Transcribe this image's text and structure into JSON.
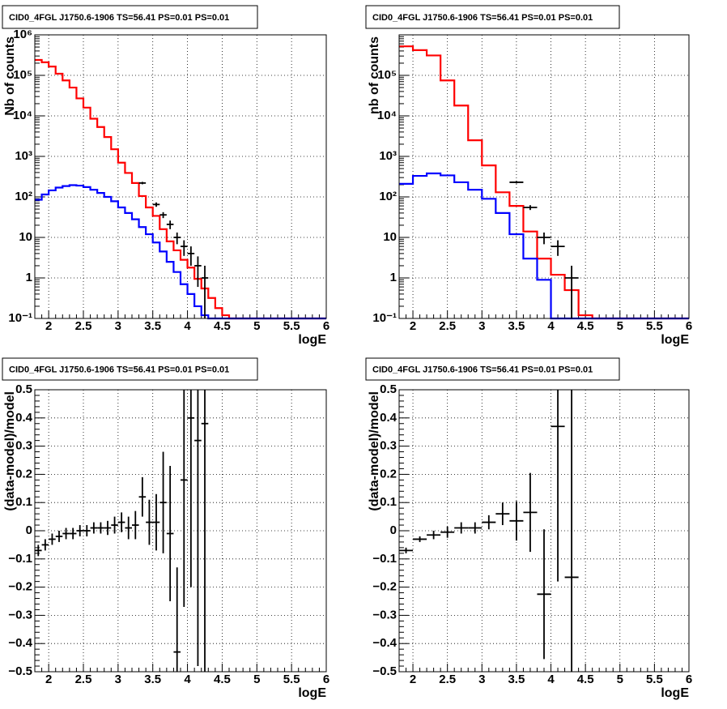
{
  "figure_title": "CID0_4FGL J1750.6-1906 TS=56.41 PS=0.01 PS=0.01",
  "colors": {
    "data": "#000000",
    "model_total": "#ff0000",
    "model_source": "#0000ff",
    "grid": "#000000",
    "frame": "#000000"
  },
  "chart_data": [
    {
      "type": "line",
      "panel": "top-left",
      "title": "CID0_4FGL J1750.6-1906 TS=56.41 PS=0.01 PS=0.01",
      "xlabel": "logE",
      "ylabel": "Nb of counts",
      "xlim": [
        1.8,
        6
      ],
      "ylim": [
        0.1,
        1000000
      ],
      "yscale": "log",
      "grid": true,
      "x_ticks": [
        "2",
        "2.5",
        "3",
        "3.5",
        "4",
        "4.5",
        "5",
        "5.5",
        "6"
      ],
      "x_tick_values": [
        2,
        2.5,
        3,
        3.5,
        4,
        4.5,
        5,
        5.5,
        6
      ],
      "y_ticks": [
        "10⁻¹",
        "1",
        "10",
        "10²",
        "10³",
        "10⁴",
        "10⁵",
        "10⁶"
      ],
      "y_tick_values": [
        0.1,
        1,
        10,
        100,
        1000,
        10000,
        100000,
        1000000
      ],
      "bin_edges": [
        1.8,
        1.9,
        2.0,
        2.1,
        2.2,
        2.3,
        2.4,
        2.5,
        2.6,
        2.7,
        2.8,
        2.9,
        3.0,
        3.1,
        3.2,
        3.3,
        3.4,
        3.5,
        3.6,
        3.7,
        3.8,
        3.9,
        4.0,
        4.1,
        4.2,
        4.3,
        4.4,
        4.5,
        4.6,
        4.7,
        4.8,
        4.9,
        5.0,
        5.1,
        5.2,
        5.3,
        5.4,
        5.5,
        5.6,
        5.7,
        5.8,
        5.9,
        6.0
      ],
      "series": [
        {
          "role": "model_total",
          "color": "#ff0000",
          "values": [
            240000,
            210000,
            165000,
            110000,
            75000,
            50000,
            27000,
            16000,
            8500,
            5300,
            3000,
            1500,
            700,
            390,
            220,
            105,
            55,
            34,
            16,
            8,
            4.8,
            2.8,
            1.8,
            0.95,
            0.55,
            0.32,
            0.18,
            0.12,
            0.1,
            0.1,
            0.1,
            0.1,
            0.1,
            0.1,
            0.1,
            0.1,
            0.1,
            0.1,
            0.1,
            0.1,
            0.1,
            0.1
          ]
        },
        {
          "role": "model_source",
          "color": "#0000ff",
          "values": [
            85,
            115,
            145,
            170,
            185,
            195,
            190,
            175,
            150,
            125,
            100,
            78,
            55,
            40,
            28,
            18,
            12,
            7.5,
            4.5,
            2.5,
            1.4,
            0.7,
            0.4,
            0.2,
            0.12,
            0.1,
            0.1,
            0.1,
            0.1,
            0.1,
            0.1,
            0.1,
            0.1,
            0.1,
            0.1,
            0.1,
            0.1,
            0.1,
            0.1,
            0.1,
            0.1,
            0.1
          ]
        },
        {
          "role": "data",
          "color": "#000000",
          "points": [
            [
              3.35,
              220,
              15
            ],
            [
              3.55,
              65,
              8
            ],
            [
              3.65,
              36,
              6
            ],
            [
              3.75,
              21,
              5
            ],
            [
              3.85,
              10,
              3.2
            ],
            [
              3.95,
              6,
              2.5
            ],
            [
              4.05,
              4,
              2
            ],
            [
              4.15,
              2,
              1.4
            ],
            [
              4.25,
              1,
              1
            ]
          ]
        }
      ]
    },
    {
      "type": "line",
      "panel": "top-right",
      "title": "CID0_4FGL J1750.6-1906 TS=56.41 PS=0.01 PS=0.01",
      "xlabel": "logE",
      "ylabel": "nb of counts",
      "xlim": [
        1.8,
        6
      ],
      "ylim": [
        0.1,
        1000000
      ],
      "yscale": "log",
      "grid": true,
      "x_ticks": [
        "2",
        "2.5",
        "3",
        "3.5",
        "4",
        "4.5",
        "5",
        "5.5",
        "6"
      ],
      "x_tick_values": [
        2,
        2.5,
        3,
        3.5,
        4,
        4.5,
        5,
        5.5,
        6
      ],
      "y_ticks": [
        "10⁻¹",
        "1",
        "10",
        "10²",
        "10³",
        "10⁴",
        "10⁵"
      ],
      "y_tick_values": [
        0.1,
        1,
        10,
        100,
        1000,
        10000,
        100000
      ],
      "bin_edges": [
        1.8,
        2.0,
        2.2,
        2.4,
        2.6,
        2.8,
        3.0,
        3.2,
        3.4,
        3.6,
        3.8,
        4.0,
        4.2,
        4.4,
        4.6,
        4.8,
        5.0,
        5.2,
        5.4,
        5.6,
        5.8,
        6.0
      ],
      "series": [
        {
          "role": "model_total",
          "color": "#ff0000",
          "values": [
            520000,
            420000,
            310000,
            75000,
            18000,
            2500,
            600,
            130,
            60,
            14,
            3,
            1.2,
            0.5,
            0.12,
            0.1,
            0.1,
            0.1,
            0.1,
            0.1,
            0.1,
            0.1
          ]
        },
        {
          "role": "model_source",
          "color": "#0000ff",
          "values": [
            210,
            330,
            380,
            340,
            230,
            150,
            90,
            40,
            12,
            3,
            0.9,
            0.1,
            0.1,
            0.1,
            0.1,
            0.1,
            0.1,
            0.1,
            0.1,
            0.1,
            0.1
          ]
        },
        {
          "role": "data",
          "color": "#000000",
          "points": [
            [
              3.5,
              230,
              15
            ],
            [
              3.7,
              55,
              7.5
            ],
            [
              3.9,
              10,
              3.2
            ],
            [
              4.1,
              6,
              2.5
            ],
            [
              4.3,
              1,
              1
            ]
          ]
        }
      ]
    },
    {
      "type": "scatter",
      "panel": "bottom-left",
      "title": "CID0_4FGL J1750.6-1906 TS=56.41 PS=0.01 PS=0.01",
      "xlabel": "logE",
      "ylabel": "(data-model)/model",
      "xlim": [
        1.8,
        6
      ],
      "ylim": [
        -0.5,
        0.5
      ],
      "grid": true,
      "x_ticks": [
        "2",
        "2.5",
        "3",
        "3.5",
        "4",
        "4.5",
        "5",
        "5.5",
        "6"
      ],
      "x_tick_values": [
        2,
        2.5,
        3,
        3.5,
        4,
        4.5,
        5,
        5.5,
        6
      ],
      "y_ticks": [
        "−0.5",
        "−0.4",
        "−0.3",
        "−0.2",
        "−0.1",
        "0",
        "0.1",
        "0.2",
        "0.3",
        "0.4",
        "0.5"
      ],
      "y_tick_values": [
        -0.5,
        -0.4,
        -0.3,
        -0.2,
        -0.1,
        0,
        0.1,
        0.2,
        0.3,
        0.4,
        0.5
      ],
      "x_halfwidth": 0.05,
      "points": [
        [
          1.85,
          -0.07,
          0.02
        ],
        [
          1.95,
          -0.05,
          0.02
        ],
        [
          2.05,
          -0.03,
          0.02
        ],
        [
          2.15,
          -0.02,
          0.02
        ],
        [
          2.25,
          -0.01,
          0.02
        ],
        [
          2.35,
          -0.01,
          0.02
        ],
        [
          2.45,
          0.0,
          0.02
        ],
        [
          2.55,
          0.0,
          0.02
        ],
        [
          2.65,
          0.01,
          0.02
        ],
        [
          2.75,
          0.01,
          0.02
        ],
        [
          2.85,
          0.01,
          0.025
        ],
        [
          2.95,
          0.02,
          0.03
        ],
        [
          3.05,
          0.03,
          0.035
        ],
        [
          3.15,
          0.01,
          0.04
        ],
        [
          3.25,
          0.02,
          0.05
        ],
        [
          3.35,
          0.12,
          0.07
        ],
        [
          3.45,
          0.03,
          0.08
        ],
        [
          3.55,
          0.03,
          0.1
        ],
        [
          3.65,
          0.1,
          0.18
        ],
        [
          3.75,
          -0.01,
          0.24
        ],
        [
          3.85,
          -0.43,
          0.3
        ],
        [
          3.95,
          0.18,
          0.45
        ],
        [
          4.05,
          0.4,
          0.6
        ],
        [
          4.15,
          0.32,
          0.8
        ],
        [
          4.25,
          0.38,
          1.0
        ]
      ]
    },
    {
      "type": "scatter",
      "panel": "bottom-right",
      "title": "CID0_4FGL J1750.6-1906 TS=56.41 PS=0.01 PS=0.01",
      "xlabel": "logE",
      "ylabel": "(data-model)/model",
      "xlim": [
        1.8,
        6
      ],
      "ylim": [
        -0.5,
        0.5
      ],
      "grid": true,
      "x_ticks": [
        "2",
        "2.5",
        "3",
        "3.5",
        "4",
        "4.5",
        "5",
        "5.5",
        "6"
      ],
      "x_tick_values": [
        2,
        2.5,
        3,
        3.5,
        4,
        4.5,
        5,
        5.5,
        6
      ],
      "y_ticks": [
        "−0.5",
        "−0.4",
        "−0.3",
        "−0.2",
        "−0.1",
        "0",
        "0.1",
        "0.2",
        "0.3",
        "0.4",
        "0.5"
      ],
      "y_tick_values": [
        -0.5,
        -0.4,
        -0.3,
        -0.2,
        -0.1,
        0,
        0.1,
        0.2,
        0.3,
        0.4,
        0.5
      ],
      "x_halfwidth": 0.1,
      "points": [
        [
          1.9,
          -0.07,
          0.01
        ],
        [
          2.1,
          -0.03,
          0.01
        ],
        [
          2.3,
          -0.015,
          0.015
        ],
        [
          2.5,
          -0.005,
          0.02
        ],
        [
          2.7,
          0.01,
          0.02
        ],
        [
          2.9,
          0.01,
          0.02
        ],
        [
          3.1,
          0.03,
          0.025
        ],
        [
          3.3,
          0.06,
          0.04
        ],
        [
          3.5,
          0.035,
          0.07
        ],
        [
          3.7,
          0.065,
          0.14
        ],
        [
          3.9,
          -0.225,
          0.23
        ],
        [
          4.1,
          0.37,
          0.55
        ],
        [
          4.3,
          -0.165,
          0.8
        ]
      ]
    }
  ]
}
